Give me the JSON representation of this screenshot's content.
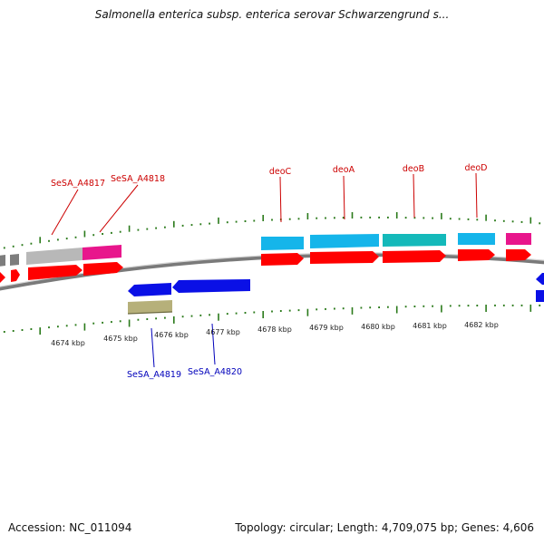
{
  "title": "Salmonella enterica subsp. enterica serovar Schwarzengrund s...",
  "footer": {
    "accession": "Accession: NC_011094",
    "summary": "Topology: circular; Length: 4,709,075 bp; Genes: 4,606"
  },
  "colors": {
    "cds": "#ff0000",
    "gene_grey": "#b8b8b8",
    "gene_magenta": "#e8168c",
    "gene_skyblue": "#15b5ea",
    "gene_teal": "#14b9ba",
    "gene_blue": "#0a10e6",
    "gene_olive": "#b6b07a",
    "tick": "#2a7a1a",
    "backbone": "#7a7a7a",
    "label_forward": "#cc0000",
    "label_reverse": "#0000bb"
  },
  "scale": {
    "unit": "kbp",
    "labels": [
      "4674 kbp",
      "4675 kbp",
      "4676 kbp",
      "4677 kbp",
      "4678 kbp",
      "4679 kbp",
      "4680 kbp",
      "4681 kbp",
      "4682 kbp"
    ]
  },
  "forward_labels": [
    "SeSA_A4817",
    "SeSA_A4818",
    "deoC",
    "deoA",
    "deoB",
    "deoD"
  ],
  "reverse_labels": [
    "SeSA_A4819",
    "SeSA_A4820"
  ]
}
